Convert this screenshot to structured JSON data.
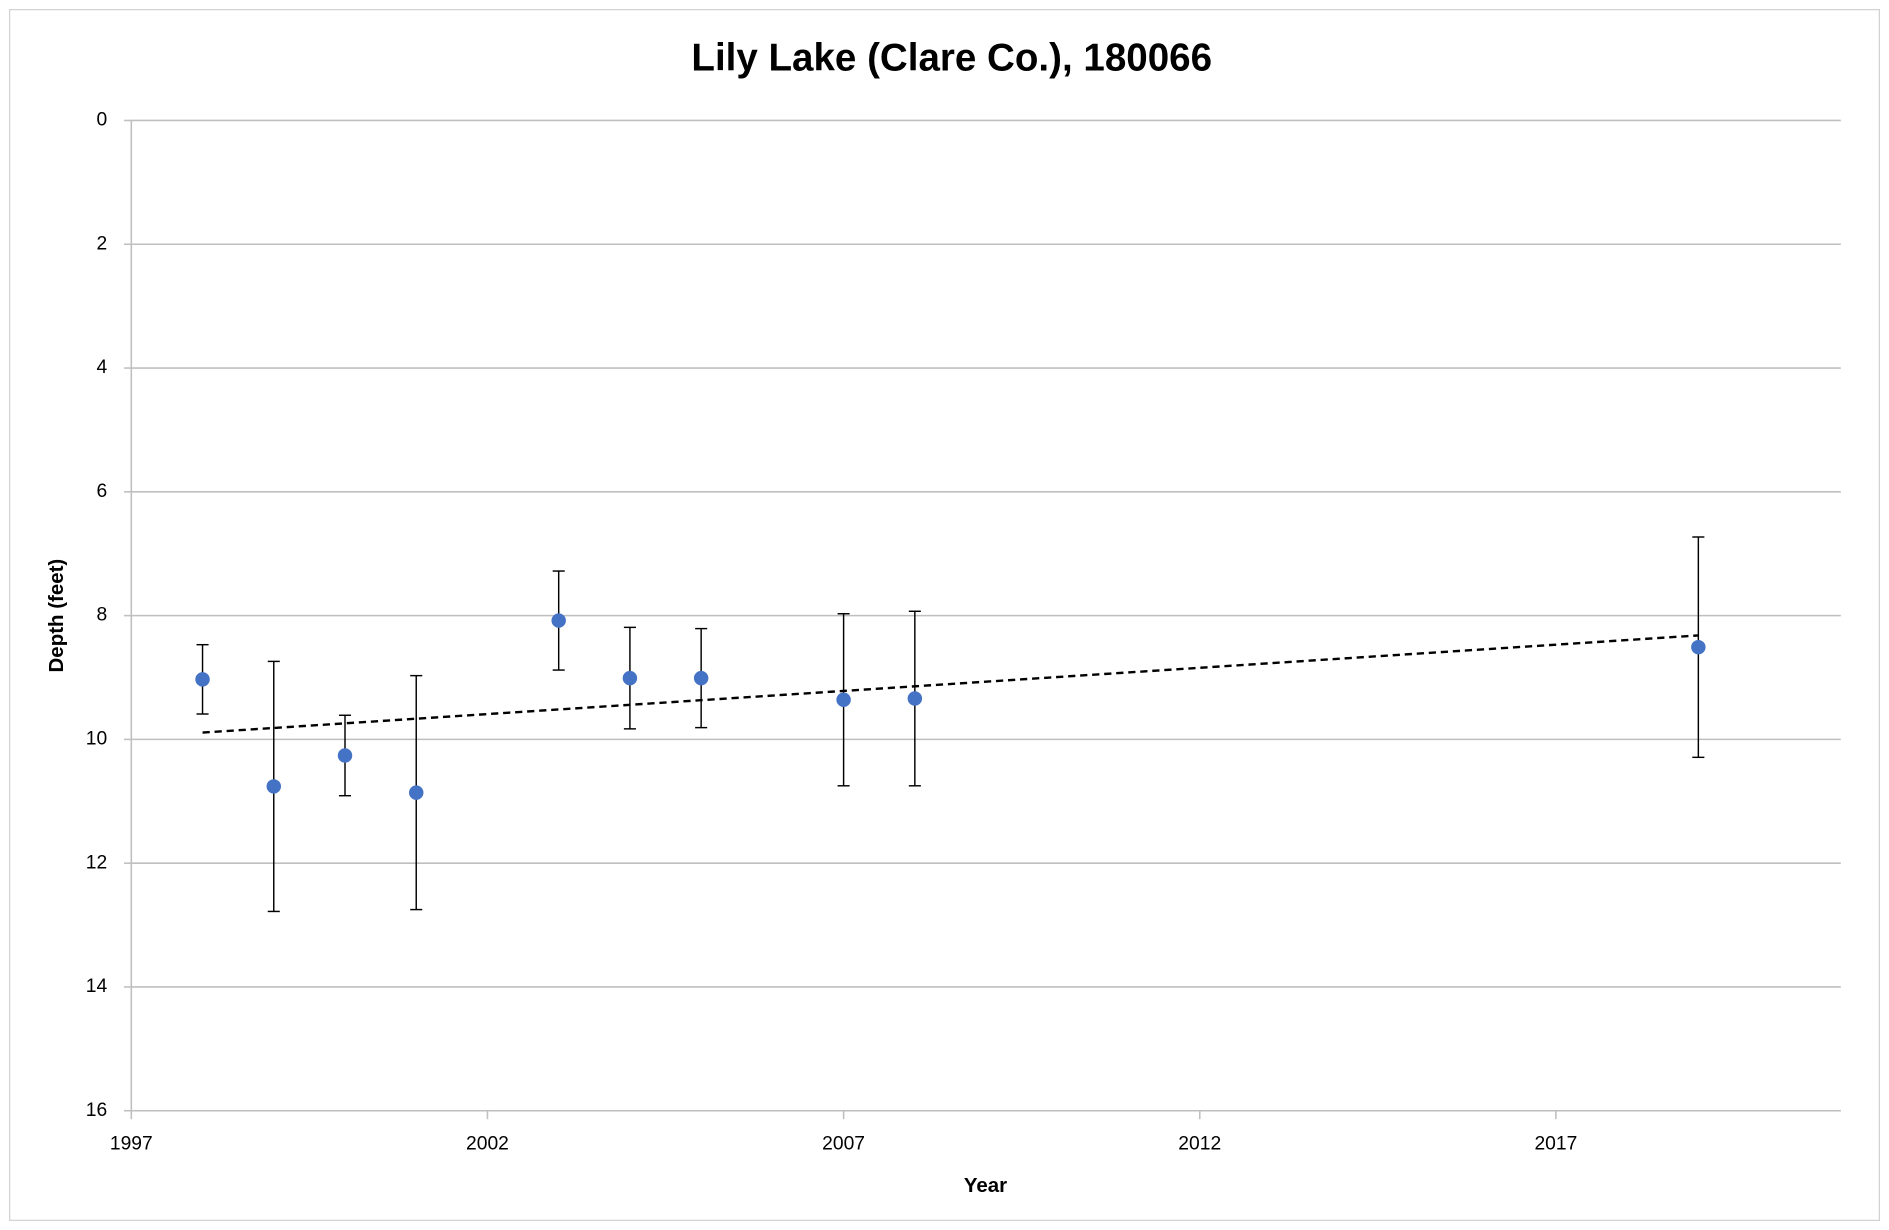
{
  "chart_data": {
    "type": "scatter",
    "title": "Lily Lake (Clare Co.), 180066",
    "x_label": "Year",
    "y_label": "Depth (feet)",
    "x": [
      1998,
      1999,
      2000,
      2001,
      2003,
      2004,
      2005,
      2007,
      2008,
      2019
    ],
    "values": [
      9.03,
      10.76,
      10.26,
      10.86,
      8.08,
      9.01,
      9.01,
      9.36,
      9.34,
      8.51
    ],
    "errors": [
      0.56,
      2.02,
      0.65,
      1.89,
      0.8,
      0.82,
      0.8,
      1.39,
      1.41,
      1.78
    ],
    "color": "#4472c4",
    "trend": {
      "x": [
        1998,
        2019
      ],
      "values": [
        9.89,
        8.32
      ]
    },
    "xlim": [
      1997,
      2021
    ],
    "xticks": [
      1997,
      2002,
      2007,
      2012,
      2017
    ],
    "ylim": [
      0,
      16
    ],
    "yticks": [
      0,
      2,
      4,
      6,
      8,
      10,
      12,
      14,
      16
    ],
    "y_reversed": true,
    "grid": true
  }
}
